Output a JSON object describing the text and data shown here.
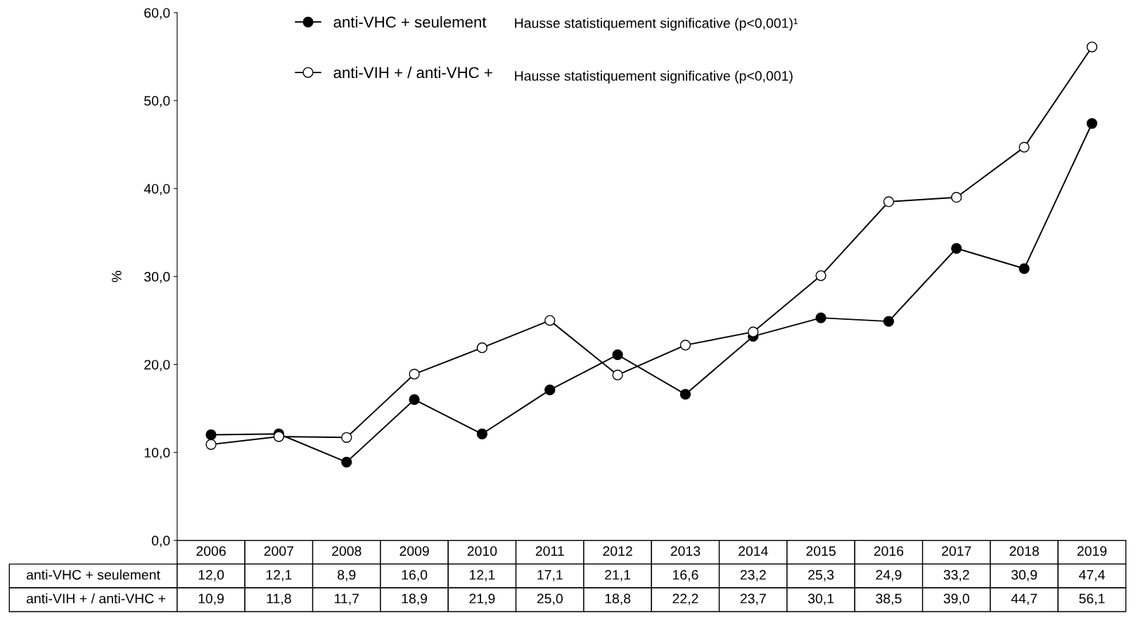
{
  "chart_data": {
    "type": "line",
    "ylabel": "%",
    "categories": [
      "2006",
      "2007",
      "2008",
      "2009",
      "2010",
      "2011",
      "2012",
      "2013",
      "2014",
      "2015",
      "2016",
      "2017",
      "2018",
      "2019"
    ],
    "series": [
      {
        "name": "anti-VHC + seulement",
        "color": "#000000",
        "marker": "circle",
        "values": [
          12.0,
          12.1,
          8.9,
          16.0,
          12.1,
          17.1,
          21.1,
          16.6,
          23.2,
          25.3,
          24.9,
          33.2,
          30.9,
          47.4
        ],
        "value_labels": [
          "12,0",
          "12,1",
          "8,9",
          "16,0",
          "12,1",
          "17,1",
          "21,1",
          "16,6",
          "23,2",
          "25,3",
          "24,9",
          "33,2",
          "30,9",
          "47,4"
        ]
      },
      {
        "name": "anti-VIH + / anti-VHC +",
        "color": "#000000",
        "marker": "circle",
        "values": [
          10.9,
          11.8,
          11.7,
          18.9,
          21.9,
          25.0,
          18.8,
          22.2,
          23.7,
          30.1,
          38.5,
          39.0,
          44.7,
          56.1
        ],
        "value_labels": [
          "10,9",
          "11,8",
          "11,7",
          "18,9",
          "21,9",
          "25,0",
          "18,8",
          "22,2",
          "23,7",
          "30,1",
          "38,5",
          "39,0",
          "44,7",
          "56,1"
        ]
      }
    ],
    "ylim": [
      0,
      60
    ],
    "yticks": [
      {
        "value": 0,
        "label": "0,0"
      },
      {
        "value": 10,
        "label": "10,0"
      },
      {
        "value": 20,
        "label": "20,0"
      },
      {
        "value": 30,
        "label": "30,0"
      },
      {
        "value": 40,
        "label": "40,0"
      },
      {
        "value": 50,
        "label": "50,0"
      },
      {
        "value": 60,
        "label": "60,0"
      }
    ],
    "annotations": [
      "Hausse statistiquement significative (p<0,001)¹",
      "Hausse statistiquement significative (p<0,001)"
    ],
    "legend": "top",
    "grid": false,
    "line_style": "solid"
  }
}
